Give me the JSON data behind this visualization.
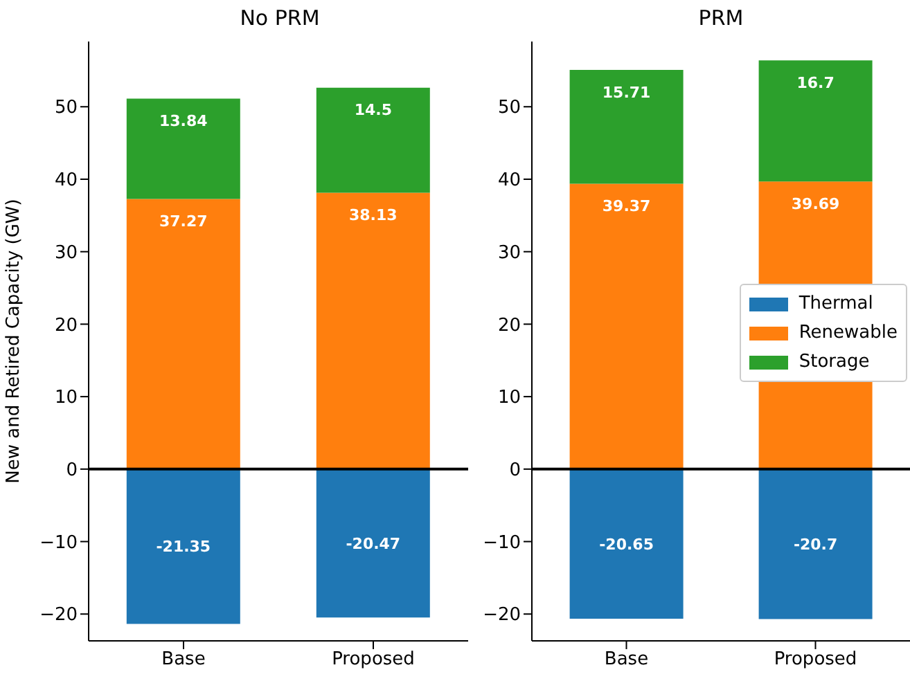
{
  "chart_data": [
    {
      "type": "bar",
      "title": "No PRM",
      "ylabel": "New and Retired Capacity (GW)",
      "categories": [
        "Base",
        "Proposed"
      ],
      "stacked": true,
      "data_labels": true,
      "grid": false,
      "legend": false,
      "ylim": [
        -23.7,
        59
      ],
      "yticks": [
        -20,
        -10,
        0,
        10,
        20,
        30,
        40,
        50
      ],
      "ref_lines": [
        {
          "axis": "y",
          "value": 0,
          "color": "#000000"
        }
      ],
      "series": [
        {
          "color": "#1f77b4",
          "values": [
            -21.35,
            -20.47
          ]
        },
        {
          "color": "#ff7f0e",
          "values": [
            37.27,
            38.13
          ]
        },
        {
          "color": "#2ca02c",
          "values": [
            13.84,
            14.5
          ]
        }
      ]
    },
    {
      "type": "bar",
      "title": "PRM",
      "categories": [
        "Base",
        "Proposed"
      ],
      "stacked": true,
      "data_labels": true,
      "grid": false,
      "legend": "right",
      "ylim": [
        -23.7,
        59
      ],
      "yticks": [
        -20,
        -10,
        0,
        10,
        20,
        30,
        40,
        50
      ],
      "ref_lines": [
        {
          "axis": "y",
          "value": 0,
          "color": "#000000"
        }
      ],
      "series": [
        {
          "name": "Thermal",
          "color": "#1f77b4",
          "values": [
            -20.65,
            -20.7
          ]
        },
        {
          "name": "Renewable",
          "color": "#ff7f0e",
          "values": [
            39.37,
            39.69
          ]
        },
        {
          "name": "Storage",
          "color": "#2ca02c",
          "values": [
            15.71,
            16.7
          ]
        }
      ]
    }
  ]
}
